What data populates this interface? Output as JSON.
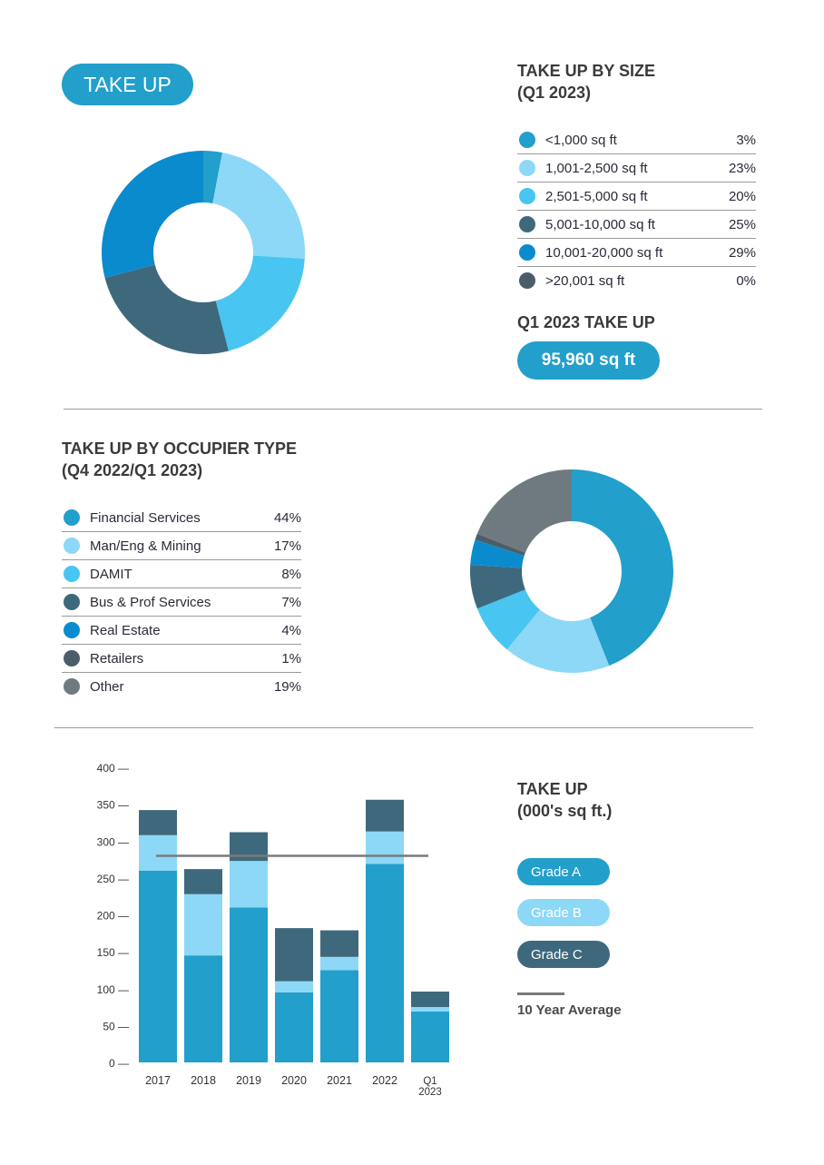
{
  "badge": {
    "label": "TAKE UP"
  },
  "size_section": {
    "title": "TAKE UP BY SIZE\n(Q1 2023)",
    "q1_title": "Q1 2023 TAKE UP",
    "q1_value": "95,960 sq ft"
  },
  "occupier_section": {
    "title": "TAKE UP BY OCCUPIER TYPE\n(Q4 2022/Q1 2023)"
  },
  "bar_section": {
    "title": "TAKE UP\n(000's sq ft.)",
    "average_label": "10 Year Average"
  },
  "colors": {
    "blue": "#229fca",
    "light_blue": "#8dd8f7",
    "sky": "#48c5f1",
    "slate": "#3e697d",
    "deep_blue": "#0a8bcd",
    "dark_slate": "#4c5d6a",
    "gray": "#6e7a7f",
    "average_line": "#7a7a7a"
  },
  "chart_data": [
    {
      "type": "pie",
      "categories": [
        "<1,000 sq ft",
        "1,001-2,500 sq ft",
        "2,501-5,000 sq ft",
        "5,001-10,000 sq ft",
        "10,001-20,000 sq ft",
        ">20,001 sq ft"
      ],
      "values": [
        3,
        23,
        20,
        25,
        29,
        0
      ],
      "labels": [
        "3%",
        "23%",
        "20%",
        "25%",
        "29%",
        "0%"
      ],
      "colors": [
        "#229fca",
        "#8dd8f7",
        "#48c5f1",
        "#3e697d",
        "#0a8bcd",
        "#4c5d6a"
      ]
    },
    {
      "type": "pie",
      "categories": [
        "Financial Services",
        "Man/Eng & Mining",
        "DAMIT",
        "Bus & Prof Services",
        "Real Estate",
        "Retailers",
        "Other"
      ],
      "values": [
        44,
        17,
        8,
        7,
        4,
        1,
        19
      ],
      "labels": [
        "44%",
        "17%",
        "8%",
        "7%",
        "4%",
        "1%",
        "19%"
      ],
      "colors": [
        "#229fca",
        "#8dd8f7",
        "#48c5f1",
        "#3e697d",
        "#0a8bcd",
        "#4c5d6a",
        "#6e7a7f"
      ]
    },
    {
      "type": "bar",
      "stacked": true,
      "categories": [
        "2017",
        "2018",
        "2019",
        "2020",
        "2021",
        "2022",
        "Q1 2023"
      ],
      "series": [
        {
          "name": "Grade A",
          "values": [
            260,
            145,
            210,
            95,
            125,
            269,
            69
          ],
          "color": "#229fca"
        },
        {
          "name": "Grade B",
          "values": [
            48,
            83,
            63,
            15,
            18,
            44,
            6
          ],
          "color": "#8dd8f7"
        },
        {
          "name": "Grade C",
          "values": [
            34,
            34,
            39,
            72,
            36,
            43,
            21
          ],
          "color": "#3e697d"
        }
      ],
      "average": 280,
      "ylim": [
        0,
        400
      ],
      "yticks": [
        0,
        50,
        100,
        150,
        200,
        250,
        300,
        350,
        400
      ],
      "ytick_labels": [
        "0 —",
        "50 —",
        "100 —",
        "150 —",
        "200 —",
        "250 —",
        "300 —",
        "350 —",
        "400 —"
      ],
      "legend_colors": {
        "Grade A": "#229fca",
        "Grade B": "#8dd8f7",
        "Grade C": "#3e697d"
      }
    }
  ]
}
